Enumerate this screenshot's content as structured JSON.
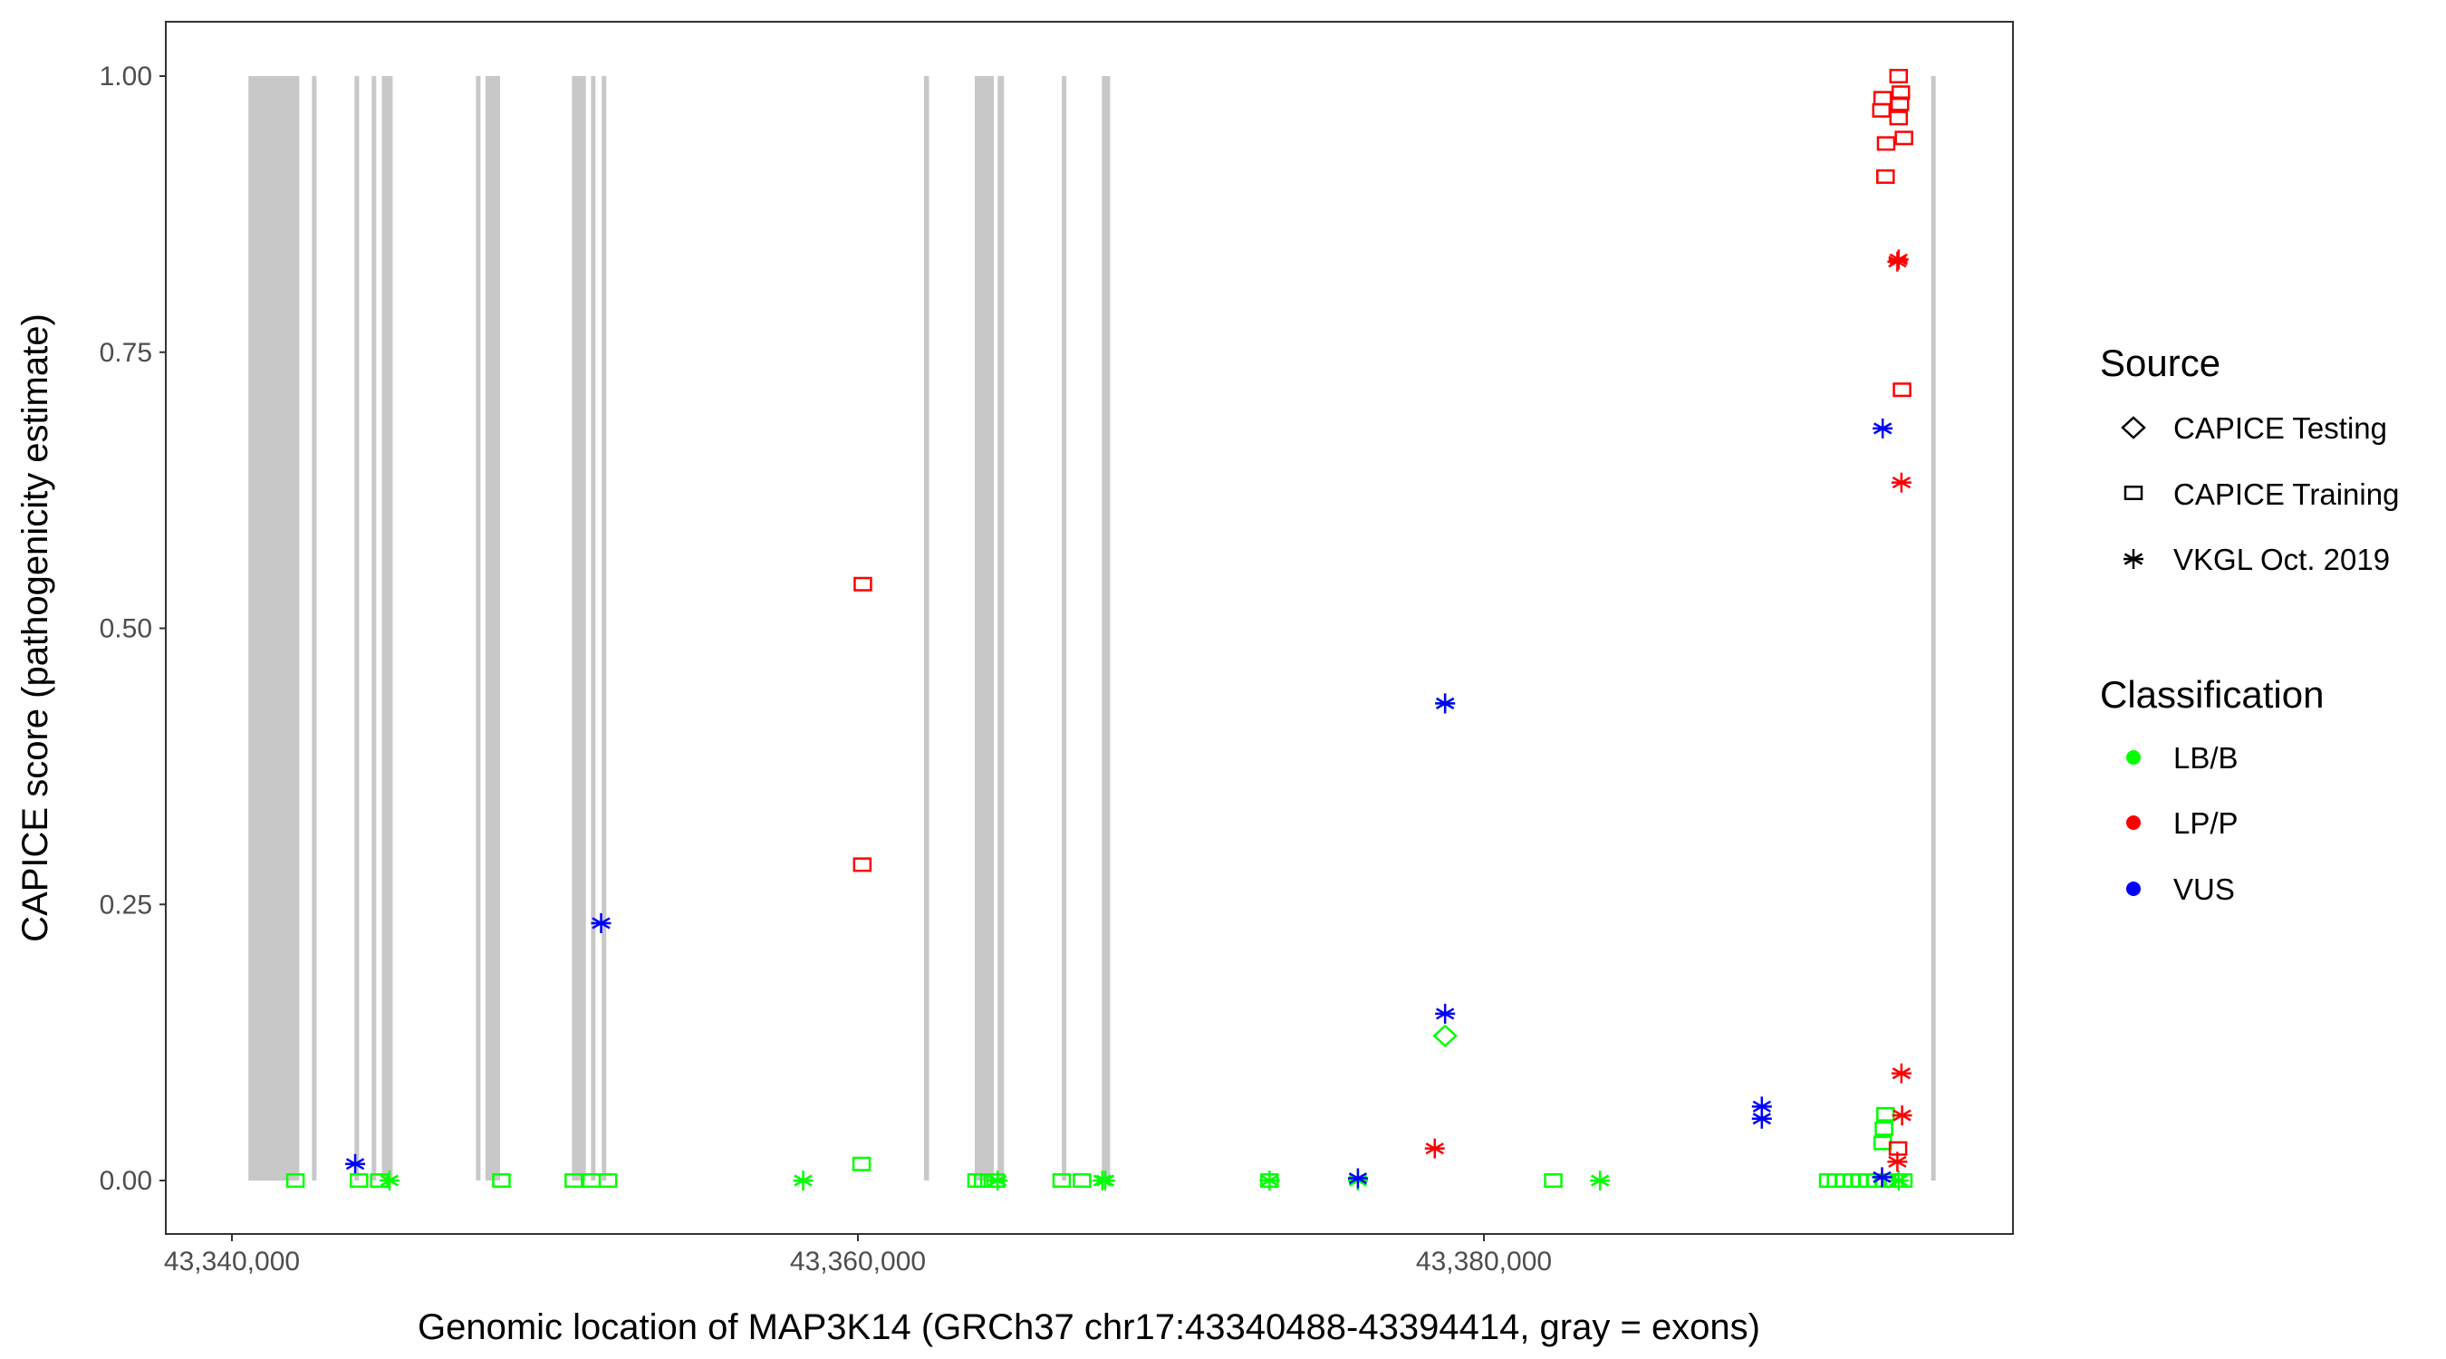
{
  "chart_data": {
    "type": "scatter",
    "xlabel": "Genomic location of MAP3K14 (GRCh37 chr17:43340488-43394414, gray = exons)",
    "ylabel": "CAPICE score (pathogenicity estimate)",
    "xlim": [
      43337000,
      43400500
    ],
    "ylim": [
      -0.05,
      1.05
    ],
    "x_ticks": [
      43340000,
      43360000,
      43380000
    ],
    "x_tick_labels": [
      "43,340,000",
      "43,360,000",
      "43,380,000"
    ],
    "y_ticks": [
      0,
      0.25,
      0.5,
      0.75,
      1.0
    ],
    "y_tick_labels": [
      "0.00",
      "0.25",
      "0.50",
      "0.75",
      "1.00"
    ],
    "grid": false,
    "legend_placement": "right",
    "legend": {
      "source_title": "Source",
      "source_items": [
        {
          "label": "CAPICE Testing",
          "shape": "diamond"
        },
        {
          "label": "CAPICE Training",
          "shape": "square"
        },
        {
          "label": "VKGL Oct. 2019",
          "shape": "star"
        }
      ],
      "class_title": "Classification",
      "class_items": [
        {
          "label": "LB/B",
          "color": "#00ff00"
        },
        {
          "label": "LP/P",
          "color": "#ff0000"
        },
        {
          "label": "VUS",
          "color": "#0000ff"
        }
      ]
    },
    "exon_color": "#c8c8c8",
    "exons": [
      [
        43340528,
        43342152
      ],
      [
        43342558,
        43342640
      ],
      [
        43343918,
        43344060
      ],
      [
        43344466,
        43344588
      ],
      [
        43344791,
        43345136
      ],
      [
        43347797,
        43347919
      ],
      [
        43348101,
        43348568
      ],
      [
        43350863,
        43351310
      ],
      [
        43351472,
        43351594
      ],
      [
        43351817,
        43351959
      ],
      [
        43362110,
        43362271
      ],
      [
        43363734,
        43364343
      ],
      [
        43364465,
        43364668
      ],
      [
        43366515,
        43366596
      ],
      [
        43367794,
        43368058
      ],
      [
        43394288,
        43394380
      ]
    ],
    "points": [
      {
        "x": 43342030,
        "y": 0,
        "source": "CAPICE Training",
        "class": "LB/B"
      },
      {
        "x": 43343938,
        "y": 0.015,
        "source": "VKGL Oct. 2019",
        "class": "VUS"
      },
      {
        "x": 43344060,
        "y": 0,
        "source": "CAPICE Training",
        "class": "LB/B"
      },
      {
        "x": 43344710,
        "y": 0,
        "source": "CAPICE Training",
        "class": "LB/B"
      },
      {
        "x": 43345034,
        "y": 0,
        "source": "VKGL Oct. 2019",
        "class": "LB/B"
      },
      {
        "x": 43348610,
        "y": 0,
        "source": "CAPICE Training",
        "class": "LB/B"
      },
      {
        "x": 43350921,
        "y": 0,
        "source": "CAPICE Training",
        "class": "LB/B"
      },
      {
        "x": 43351490,
        "y": 0,
        "source": "CAPICE Training",
        "class": "LB/B"
      },
      {
        "x": 43352018,
        "y": 0,
        "source": "CAPICE Training",
        "class": "LB/B"
      },
      {
        "x": 43351795,
        "y": 0.233,
        "source": "VKGL Oct. 2019",
        "class": "VUS"
      },
      {
        "x": 43358250,
        "y": 0,
        "source": "VKGL Oct. 2019",
        "class": "LB/B"
      },
      {
        "x": 43360158,
        "y": 0.54,
        "source": "CAPICE Training",
        "class": "LP/P"
      },
      {
        "x": 43360140,
        "y": 0.286,
        "source": "CAPICE Training",
        "class": "LP/P"
      },
      {
        "x": 43360117,
        "y": 0.015,
        "source": "CAPICE Training",
        "class": "LB/B"
      },
      {
        "x": 43363790,
        "y": 0,
        "source": "CAPICE Training",
        "class": "LB/B"
      },
      {
        "x": 43364000,
        "y": 0,
        "source": "CAPICE Training",
        "class": "LB/B"
      },
      {
        "x": 43364200,
        "y": 0,
        "source": "CAPICE Training",
        "class": "LB/B"
      },
      {
        "x": 43364400,
        "y": 0,
        "source": "CAPICE Training",
        "class": "LB/B"
      },
      {
        "x": 43364460,
        "y": 0,
        "source": "VKGL Oct. 2019",
        "class": "LB/B"
      },
      {
        "x": 43366511,
        "y": 0,
        "source": "CAPICE Training",
        "class": "LB/B"
      },
      {
        "x": 43367160,
        "y": 0,
        "source": "CAPICE Training",
        "class": "LB/B"
      },
      {
        "x": 43367810,
        "y": 0,
        "source": "VKGL Oct. 2019",
        "class": "LB/B"
      },
      {
        "x": 43367900,
        "y": 0,
        "source": "VKGL Oct. 2019",
        "class": "LB/B"
      },
      {
        "x": 43373150,
        "y": 0,
        "source": "CAPICE Training",
        "class": "LB/B"
      },
      {
        "x": 43373150,
        "y": 0,
        "source": "VKGL Oct. 2019",
        "class": "LB/B"
      },
      {
        "x": 43375975,
        "y": 0,
        "source": "VKGL Oct. 2019",
        "class": "LB/B"
      },
      {
        "x": 43375975,
        "y": 0.002,
        "source": "VKGL Oct. 2019",
        "class": "VUS"
      },
      {
        "x": 43378430,
        "y": 0.029,
        "source": "VKGL Oct. 2019",
        "class": "LP/P"
      },
      {
        "x": 43378760,
        "y": 0.432,
        "source": "VKGL Oct. 2019",
        "class": "LB/B"
      },
      {
        "x": 43378760,
        "y": 0.432,
        "source": "VKGL Oct. 2019",
        "class": "VUS"
      },
      {
        "x": 43378760,
        "y": 0.151,
        "source": "VKGL Oct. 2019",
        "class": "VUS"
      },
      {
        "x": 43378760,
        "y": 0.131,
        "source": "CAPICE Testing",
        "class": "LB/B"
      },
      {
        "x": 43382215,
        "y": 0,
        "source": "CAPICE Training",
        "class": "LB/B"
      },
      {
        "x": 43383710,
        "y": 0,
        "source": "VKGL Oct. 2019",
        "class": "LB/B"
      },
      {
        "x": 43388880,
        "y": 0.067,
        "source": "VKGL Oct. 2019",
        "class": "VUS"
      },
      {
        "x": 43388880,
        "y": 0.056,
        "source": "VKGL Oct. 2019",
        "class": "VUS"
      },
      {
        "x": 43391000,
        "y": 0,
        "source": "CAPICE Training",
        "class": "LB/B"
      },
      {
        "x": 43391250,
        "y": 0,
        "source": "CAPICE Training",
        "class": "LB/B"
      },
      {
        "x": 43391500,
        "y": 0,
        "source": "CAPICE Training",
        "class": "LB/B"
      },
      {
        "x": 43391750,
        "y": 0,
        "source": "CAPICE Training",
        "class": "LB/B"
      },
      {
        "x": 43392000,
        "y": 0,
        "source": "CAPICE Training",
        "class": "LB/B"
      },
      {
        "x": 43392250,
        "y": 0,
        "source": "CAPICE Training",
        "class": "LB/B"
      },
      {
        "x": 43392500,
        "y": 0,
        "source": "CAPICE Training",
        "class": "LB/B"
      },
      {
        "x": 43392800,
        "y": 0,
        "source": "CAPICE Training",
        "class": "LB/B"
      },
      {
        "x": 43393100,
        "y": 0,
        "source": "CAPICE Training",
        "class": "LB/B"
      },
      {
        "x": 43393400,
        "y": 0,
        "source": "CAPICE Training",
        "class": "LB/B"
      },
      {
        "x": 43393250,
        "y": 0,
        "source": "VKGL Oct. 2019",
        "class": "LB/B"
      },
      {
        "x": 43392720,
        "y": 0.003,
        "source": "VKGL Oct. 2019",
        "class": "VUS"
      },
      {
        "x": 43392830,
        "y": 0.06,
        "source": "CAPICE Training",
        "class": "LB/B"
      },
      {
        "x": 43392780,
        "y": 0.047,
        "source": "CAPICE Training",
        "class": "LB/B"
      },
      {
        "x": 43392740,
        "y": 0.034,
        "source": "CAPICE Training",
        "class": "LB/B"
      },
      {
        "x": 43393230,
        "y": 0.029,
        "source": "CAPICE Training",
        "class": "LP/P"
      },
      {
        "x": 43393250,
        "y": 1.0,
        "source": "CAPICE Training",
        "class": "LP/P"
      },
      {
        "x": 43393320,
        "y": 0.985,
        "source": "CAPICE Training",
        "class": "LP/P"
      },
      {
        "x": 43392740,
        "y": 0.98,
        "source": "CAPICE Training",
        "class": "LP/P"
      },
      {
        "x": 43392700,
        "y": 0.969,
        "source": "CAPICE Training",
        "class": "LP/P"
      },
      {
        "x": 43393290,
        "y": 0.975,
        "source": "CAPICE Training",
        "class": "LP/P"
      },
      {
        "x": 43393250,
        "y": 0.962,
        "source": "CAPICE Training",
        "class": "LP/P"
      },
      {
        "x": 43393420,
        "y": 0.944,
        "source": "CAPICE Training",
        "class": "LP/P"
      },
      {
        "x": 43392850,
        "y": 0.939,
        "source": "CAPICE Training",
        "class": "LP/P"
      },
      {
        "x": 43392830,
        "y": 0.909,
        "source": "CAPICE Training",
        "class": "LP/P"
      },
      {
        "x": 43393360,
        "y": 0.716,
        "source": "CAPICE Training",
        "class": "LP/P"
      },
      {
        "x": 43393250,
        "y": 0.834,
        "source": "VKGL Oct. 2019",
        "class": "LP/P"
      },
      {
        "x": 43393210,
        "y": 0.832,
        "source": "VKGL Oct. 2019",
        "class": "LP/P"
      },
      {
        "x": 43393340,
        "y": 0.632,
        "source": "VKGL Oct. 2019",
        "class": "LP/P"
      },
      {
        "x": 43392740,
        "y": 0.681,
        "source": "VKGL Oct. 2019",
        "class": "VUS"
      },
      {
        "x": 43393340,
        "y": 0.097,
        "source": "VKGL Oct. 2019",
        "class": "LP/P"
      },
      {
        "x": 43393360,
        "y": 0.059,
        "source": "VKGL Oct. 2019",
        "class": "LP/P"
      },
      {
        "x": 43393210,
        "y": 0.017,
        "source": "VKGL Oct. 2019",
        "class": "LP/P"
      }
    ]
  }
}
